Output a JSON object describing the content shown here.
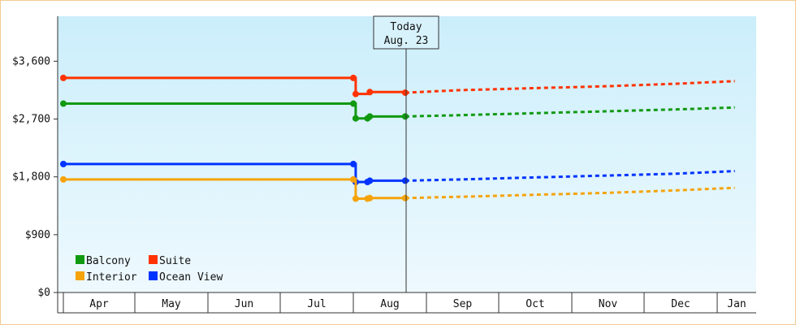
{
  "chart_data": {
    "type": "line",
    "title": "",
    "xlabel": "",
    "ylabel": "",
    "x_axis": {
      "months": [
        "Apr",
        "May",
        "Jun",
        "Jul",
        "Aug",
        "Sep",
        "Oct",
        "Nov",
        "Dec",
        "Jan"
      ]
    },
    "y_axis": {
      "ylim": [
        0,
        4300
      ],
      "ticks": [
        0,
        900,
        1800,
        2700,
        3600
      ],
      "tick_labels": [
        "$0",
        "$900",
        "$1,800",
        "$2,700",
        "$3,600"
      ]
    },
    "today_marker": {
      "line1": "Today",
      "line2": "Aug. 23"
    },
    "legend": {
      "placement": "bottom-left",
      "items": [
        {
          "label": "Balcony",
          "color": "#119911"
        },
        {
          "label": "Suite",
          "color": "#ff3300"
        },
        {
          "label": "Interior",
          "color": "#f5a30a"
        },
        {
          "label": "Ocean View",
          "color": "#0033ff"
        }
      ]
    },
    "background_gradient": [
      "#cbeefb",
      "#eef9fe"
    ],
    "series": [
      {
        "name": "Suite",
        "color": "#ff3300",
        "history": [
          [
            "Apr 1",
            3340
          ],
          [
            "Aug 1",
            3340
          ],
          [
            "Aug 2",
            3090
          ],
          [
            "Aug 8",
            3120
          ],
          [
            "Aug 23",
            3110
          ]
        ],
        "forecast": [
          [
            "Aug 23",
            3110
          ],
          [
            "Sep 15",
            3150
          ],
          [
            "Oct 15",
            3180
          ],
          [
            "Nov 15",
            3210
          ],
          [
            "Dec 15",
            3250
          ],
          [
            "Jan 15",
            3290
          ]
        ]
      },
      {
        "name": "Balcony",
        "color": "#119911",
        "history": [
          [
            "Apr 1",
            2940
          ],
          [
            "Aug 1",
            2940
          ],
          [
            "Aug 2",
            2710
          ],
          [
            "Aug 7",
            2710
          ],
          [
            "Aug 8",
            2740
          ],
          [
            "Aug 23",
            2740
          ]
        ],
        "forecast": [
          [
            "Aug 23",
            2740
          ],
          [
            "Sep 15",
            2760
          ],
          [
            "Oct 15",
            2790
          ],
          [
            "Nov 15",
            2820
          ],
          [
            "Dec 15",
            2850
          ],
          [
            "Jan 15",
            2880
          ]
        ]
      },
      {
        "name": "Ocean View",
        "color": "#0033ff",
        "history": [
          [
            "Apr 1",
            2000
          ],
          [
            "Aug 1",
            2000
          ],
          [
            "Aug 2",
            1720
          ],
          [
            "Aug 7",
            1720
          ],
          [
            "Aug 8",
            1740
          ],
          [
            "Aug 23",
            1740
          ]
        ],
        "forecast": [
          [
            "Aug 23",
            1740
          ],
          [
            "Sep 15",
            1760
          ],
          [
            "Oct 15",
            1790
          ],
          [
            "Nov 15",
            1820
          ],
          [
            "Dec 15",
            1850
          ],
          [
            "Jan 15",
            1890
          ]
        ]
      },
      {
        "name": "Interior",
        "color": "#f5a30a",
        "history": [
          [
            "Apr 1",
            1760
          ],
          [
            "Aug 1",
            1760
          ],
          [
            "Aug 2",
            1460
          ],
          [
            "Aug 7",
            1460
          ],
          [
            "Aug 8",
            1470
          ],
          [
            "Aug 23",
            1470
          ]
        ],
        "forecast": [
          [
            "Aug 23",
            1470
          ],
          [
            "Sep 15",
            1490
          ],
          [
            "Oct 15",
            1520
          ],
          [
            "Nov 15",
            1550
          ],
          [
            "Dec 15",
            1590
          ],
          [
            "Jan 15",
            1630
          ]
        ]
      }
    ]
  }
}
